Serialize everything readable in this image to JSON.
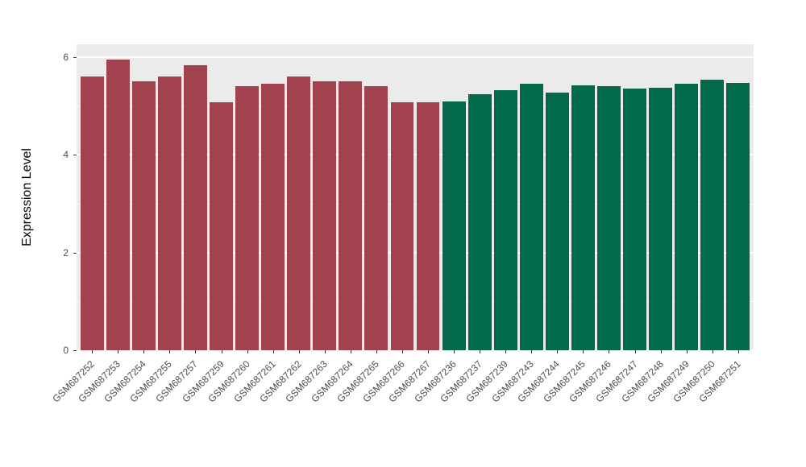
{
  "chart_data": {
    "type": "bar",
    "title": "",
    "xlabel": "",
    "ylabel": "Expression Level",
    "ylim": [
      0,
      6.26
    ],
    "ytick_values": [
      0,
      2,
      4,
      6
    ],
    "ytick_labels": [
      "0",
      "2",
      "4",
      "6"
    ],
    "minor_ytick_values": [
      1,
      3,
      5
    ],
    "grid": "on",
    "legend": "none",
    "panel_background": "#EBEBEB",
    "grid_color": "#FFFFFF",
    "categories": [
      "GSM687252",
      "GSM687253",
      "GSM687254",
      "GSM687255",
      "GSM687257",
      "GSM687259",
      "GSM687260",
      "GSM687261",
      "GSM687262",
      "GSM687263",
      "GSM687264",
      "GSM687265",
      "GSM687266",
      "GSM687267",
      "GSM687236",
      "GSM687237",
      "GSM687239",
      "GSM687243",
      "GSM687244",
      "GSM687245",
      "GSM687246",
      "GSM687247",
      "GSM687248",
      "GSM687249",
      "GSM687250",
      "GSM687251"
    ],
    "values": [
      5.6,
      5.95,
      5.5,
      5.6,
      5.83,
      5.08,
      5.4,
      5.45,
      5.6,
      5.51,
      5.5,
      5.4,
      5.08,
      5.08,
      5.1,
      5.24,
      5.33,
      5.45,
      5.27,
      5.43,
      5.41,
      5.35,
      5.38,
      5.45,
      5.54,
      5.48
    ],
    "series_groups": [
      {
        "name": "group-1-red",
        "color": "#A2424F",
        "from": 0,
        "to": 13
      },
      {
        "name": "group-2-green",
        "color": "#03694B",
        "from": 14,
        "to": 25
      }
    ]
  }
}
